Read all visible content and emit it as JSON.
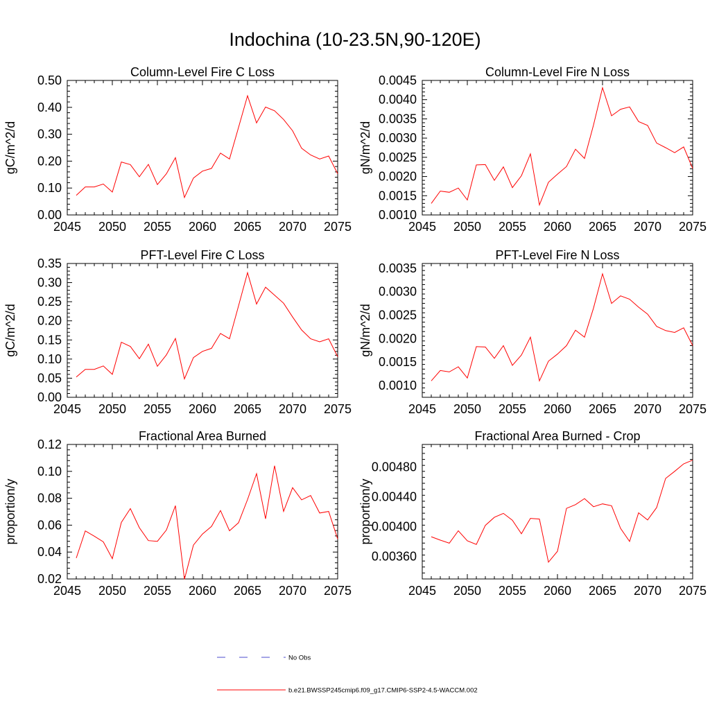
{
  "main_title": "Indochina (10-23.5N,90-120E)",
  "legend": {
    "entries": [
      {
        "label": "No Obs",
        "style": "dashed",
        "color": "#4b4bcc"
      },
      {
        "label": "b.e21.BWSSP245cmip6.f09_g17.CMIP6-SSP2-4.5-WACCM.002",
        "style": "solid",
        "color": "#ff0000"
      }
    ]
  },
  "chart_data": [
    {
      "type": "line",
      "title": "Column-Level Fire C Loss",
      "ylabel": "gC/m^2/d",
      "xlabel": "",
      "xlim": [
        2045,
        2075
      ],
      "ylim": [
        0.0,
        0.5
      ],
      "xticks": [
        2045,
        2050,
        2055,
        2060,
        2065,
        2070,
        2075
      ],
      "xtick_labels": [
        "2045",
        "2050",
        "2055",
        "2060",
        "2065",
        "2070",
        "2075"
      ],
      "yticks": [
        0.0,
        0.1,
        0.2,
        0.3,
        0.4,
        0.5
      ],
      "ytick_labels": [
        "0.00",
        "0.10",
        "0.20",
        "0.30",
        "0.40",
        "0.50"
      ],
      "x": [
        2046,
        2047,
        2048,
        2049,
        2050,
        2051,
        2052,
        2053,
        2054,
        2055,
        2056,
        2057,
        2058,
        2059,
        2060,
        2061,
        2062,
        2063,
        2064,
        2065,
        2066,
        2067,
        2068,
        2069,
        2070,
        2071,
        2072,
        2073,
        2074,
        2075
      ],
      "series": [
        {
          "color": "#ff0000",
          "values": [
            0.073,
            0.104,
            0.104,
            0.115,
            0.085,
            0.197,
            0.187,
            0.142,
            0.188,
            0.113,
            0.153,
            0.213,
            0.065,
            0.137,
            0.163,
            0.173,
            0.23,
            0.208,
            0.325,
            0.443,
            0.342,
            0.401,
            0.387,
            0.355,
            0.313,
            0.248,
            0.223,
            0.208,
            0.219,
            0.153
          ]
        }
      ]
    },
    {
      "type": "line",
      "title": "Column-Level Fire N Loss",
      "ylabel": "gN/m^2/d",
      "xlabel": "",
      "xlim": [
        2045,
        2075
      ],
      "ylim": [
        0.001,
        0.0045
      ],
      "xticks": [
        2045,
        2050,
        2055,
        2060,
        2065,
        2070,
        2075
      ],
      "xtick_labels": [
        "2045",
        "2050",
        "2055",
        "2060",
        "2065",
        "2070",
        "2075"
      ],
      "yticks": [
        0.001,
        0.0015,
        0.002,
        0.0025,
        0.003,
        0.0035,
        0.004,
        0.0045
      ],
      "ytick_labels": [
        "0.0010",
        "0.0015",
        "0.0020",
        "0.0025",
        "0.0030",
        "0.0035",
        "0.0040",
        "0.0045"
      ],
      "x": [
        2046,
        2047,
        2048,
        2049,
        2050,
        2051,
        2052,
        2053,
        2054,
        2055,
        2056,
        2057,
        2058,
        2059,
        2060,
        2061,
        2062,
        2063,
        2064,
        2065,
        2066,
        2067,
        2068,
        2069,
        2070,
        2071,
        2072,
        2073,
        2074,
        2075
      ],
      "series": [
        {
          "color": "#ff0000",
          "values": [
            0.0013,
            0.00162,
            0.00159,
            0.0017,
            0.00139,
            0.0023,
            0.00231,
            0.0019,
            0.00225,
            0.00171,
            0.00202,
            0.00259,
            0.00126,
            0.00185,
            0.00206,
            0.00226,
            0.00271,
            0.00247,
            0.00334,
            0.00431,
            0.00358,
            0.00375,
            0.00381,
            0.00343,
            0.00333,
            0.00287,
            0.00275,
            0.00262,
            0.00277,
            0.00221
          ]
        }
      ]
    },
    {
      "type": "line",
      "title": "PFT-Level Fire C Loss",
      "ylabel": "gC/m^2/d",
      "xlabel": "",
      "xlim": [
        2045,
        2075
      ],
      "ylim": [
        0.0,
        0.35
      ],
      "xticks": [
        2045,
        2050,
        2055,
        2060,
        2065,
        2070,
        2075
      ],
      "xtick_labels": [
        "2045",
        "2050",
        "2055",
        "2060",
        "2065",
        "2070",
        "2075"
      ],
      "yticks": [
        0.0,
        0.05,
        0.1,
        0.15,
        0.2,
        0.25,
        0.3,
        0.35
      ],
      "ytick_labels": [
        "0.00",
        "0.05",
        "0.10",
        "0.15",
        "0.20",
        "0.25",
        "0.30",
        "0.35"
      ],
      "x": [
        2046,
        2047,
        2048,
        2049,
        2050,
        2051,
        2052,
        2053,
        2054,
        2055,
        2056,
        2057,
        2058,
        2059,
        2060,
        2061,
        2062,
        2063,
        2064,
        2065,
        2066,
        2067,
        2068,
        2069,
        2070,
        2071,
        2072,
        2073,
        2074,
        2075
      ],
      "series": [
        {
          "color": "#ff0000",
          "values": [
            0.053,
            0.073,
            0.073,
            0.082,
            0.06,
            0.144,
            0.133,
            0.101,
            0.139,
            0.081,
            0.111,
            0.154,
            0.048,
            0.104,
            0.12,
            0.128,
            0.167,
            0.153,
            0.239,
            0.326,
            0.244,
            0.288,
            0.267,
            0.246,
            0.21,
            0.176,
            0.153,
            0.145,
            0.153,
            0.106
          ]
        }
      ]
    },
    {
      "type": "line",
      "title": "PFT-Level Fire N Loss",
      "ylabel": "gN/m^2/d",
      "xlabel": "",
      "xlim": [
        2045,
        2075
      ],
      "ylim": [
        0.00075,
        0.0036
      ],
      "xticks": [
        2045,
        2050,
        2055,
        2060,
        2065,
        2070,
        2075
      ],
      "xtick_labels": [
        "2045",
        "2050",
        "2055",
        "2060",
        "2065",
        "2070",
        "2075"
      ],
      "yticks": [
        0.001,
        0.0015,
        0.002,
        0.0025,
        0.003,
        0.0035
      ],
      "ytick_labels": [
        "0.0010",
        "0.0015",
        "0.0020",
        "0.0025",
        "0.0030",
        "0.0035"
      ],
      "x": [
        2046,
        2047,
        2048,
        2049,
        2050,
        2051,
        2052,
        2053,
        2054,
        2055,
        2056,
        2057,
        2058,
        2059,
        2060,
        2061,
        2062,
        2063,
        2064,
        2065,
        2066,
        2067,
        2068,
        2069,
        2070,
        2071,
        2072,
        2073,
        2074,
        2075
      ],
      "series": [
        {
          "color": "#ff0000",
          "values": [
            0.0011,
            0.00132,
            0.00129,
            0.0014,
            0.00116,
            0.00183,
            0.00182,
            0.00158,
            0.00185,
            0.00143,
            0.00165,
            0.00203,
            0.0011,
            0.00152,
            0.00167,
            0.00185,
            0.00218,
            0.00203,
            0.00265,
            0.00338,
            0.00275,
            0.00291,
            0.00284,
            0.00267,
            0.00252,
            0.00226,
            0.00217,
            0.00213,
            0.00223,
            0.00185
          ]
        }
      ]
    },
    {
      "type": "line",
      "title": "Fractional Area Burned",
      "ylabel": "proportion/y",
      "xlabel": "",
      "xlim": [
        2045,
        2075
      ],
      "ylim": [
        0.02,
        0.12
      ],
      "xticks": [
        2045,
        2050,
        2055,
        2060,
        2065,
        2070,
        2075
      ],
      "xtick_labels": [
        "2045",
        "2050",
        "2055",
        "2060",
        "2065",
        "2070",
        "2075"
      ],
      "yticks": [
        0.02,
        0.04,
        0.06,
        0.08,
        0.1,
        0.12
      ],
      "ytick_labels": [
        "0.02",
        "0.04",
        "0.06",
        "0.08",
        "0.10",
        "0.12"
      ],
      "x": [
        2046,
        2047,
        2048,
        2049,
        2050,
        2051,
        2052,
        2053,
        2054,
        2055,
        2056,
        2057,
        2058,
        2059,
        2060,
        2061,
        2062,
        2063,
        2064,
        2065,
        2066,
        2067,
        2068,
        2069,
        2070,
        2071,
        2072,
        2073,
        2074,
        2075
      ],
      "series": [
        {
          "color": "#ff0000",
          "values": [
            0.0355,
            0.0557,
            0.0518,
            0.0476,
            0.0351,
            0.062,
            0.0723,
            0.0581,
            0.0485,
            0.048,
            0.0564,
            0.0745,
            0.0198,
            0.0452,
            0.0534,
            0.059,
            0.0709,
            0.0558,
            0.0618,
            0.079,
            0.0983,
            0.0647,
            0.1042,
            0.0702,
            0.0879,
            0.0788,
            0.082,
            0.069,
            0.0702,
            0.0497
          ]
        }
      ]
    },
    {
      "type": "line",
      "title": "Fractional Area Burned - Crop",
      "ylabel": "proportion/y",
      "xlabel": "",
      "xlim": [
        2045,
        2075
      ],
      "ylim": [
        0.0033,
        0.0051
      ],
      "xticks": [
        2045,
        2050,
        2055,
        2060,
        2065,
        2070,
        2075
      ],
      "xtick_labels": [
        "2045",
        "2050",
        "2055",
        "2060",
        "2065",
        "2070",
        "2075"
      ],
      "yticks": [
        0.0036,
        0.0044,
        0.0048
      ],
      "ytick_labels": [
        "0.00360",
        "0.00440",
        "0.00480"
      ],
      "yticks_unlabeled": [
        0.004
      ],
      "yticks_unlabeled_labels": [
        "0.00400"
      ],
      "x": [
        2046,
        2047,
        2048,
        2049,
        2050,
        2051,
        2052,
        2053,
        2054,
        2055,
        2056,
        2057,
        2058,
        2059,
        2060,
        2061,
        2062,
        2063,
        2064,
        2065,
        2066,
        2067,
        2068,
        2069,
        2070,
        2071,
        2072,
        2073,
        2074,
        2075
      ],
      "series": [
        {
          "color": "#ff0000",
          "values": [
            0.003865,
            0.00382,
            0.003779,
            0.003945,
            0.00381,
            0.003762,
            0.004017,
            0.004125,
            0.004178,
            0.004085,
            0.003905,
            0.004111,
            0.004102,
            0.003525,
            0.00367,
            0.004245,
            0.004295,
            0.004375,
            0.004267,
            0.004305,
            0.00428,
            0.003977,
            0.003802,
            0.004185,
            0.00409,
            0.004255,
            0.004645,
            0.00474,
            0.00484,
            0.00489
          ]
        }
      ]
    }
  ]
}
